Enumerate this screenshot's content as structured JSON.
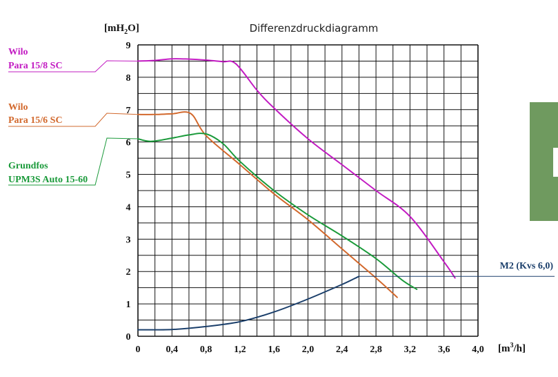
{
  "chart_data": {
    "type": "line",
    "title": "Differenzdruckdiagramm",
    "ylabel": "[mH2O]",
    "xlabel": "[m3/h]",
    "xlim": [
      0,
      4.0
    ],
    "ylim": [
      0,
      9
    ],
    "grid": true,
    "x_ticks": [
      0,
      0.4,
      0.8,
      1.2,
      1.6,
      2.0,
      2.4,
      2.8,
      3.2,
      3.6,
      4.0
    ],
    "x_tick_labels": [
      "0",
      "0,4",
      "0,8",
      "1,2",
      "1,6",
      "2,0",
      "2,4",
      "2,8",
      "3,2",
      "3,6",
      "4,0"
    ],
    "y_ticks": [
      0,
      1,
      2,
      3,
      4,
      5,
      6,
      7,
      8,
      9
    ],
    "y_tick_labels": [
      "0",
      "1",
      "2",
      "3",
      "4",
      "5",
      "6",
      "7",
      "8",
      "9"
    ],
    "series": [
      {
        "name": "Wilo Para 15/8 SC",
        "label_lines": [
          "Wilo",
          "Para 15/8 SC"
        ],
        "color": "#c21bc2",
        "x": [
          0,
          0.2,
          0.4,
          0.6,
          0.8,
          1.0,
          1.15,
          1.4,
          1.6,
          2.0,
          2.4,
          2.8,
          3.2,
          3.6,
          3.73
        ],
        "y": [
          8.5,
          8.52,
          8.57,
          8.56,
          8.53,
          8.48,
          8.42,
          7.6,
          7.05,
          6.1,
          5.3,
          4.5,
          3.7,
          2.3,
          1.8
        ]
      },
      {
        "name": "Wilo Para 15/6 SC",
        "label_lines": [
          "Wilo",
          "Para 15/6 SC"
        ],
        "color": "#d2682c",
        "x": [
          0,
          0.2,
          0.4,
          0.62,
          0.8,
          1.2,
          1.6,
          2.0,
          2.4,
          2.8,
          3.05
        ],
        "y": [
          6.85,
          6.85,
          6.87,
          6.88,
          6.2,
          5.3,
          4.4,
          3.6,
          2.7,
          1.8,
          1.2
        ]
      },
      {
        "name": "Grundfos UPM3S Auto 15-60",
        "label_lines": [
          "Grundfos",
          "UPM3S Auto 15-60"
        ],
        "color": "#1a9a3a",
        "x": [
          0,
          0.15,
          0.4,
          0.6,
          0.8,
          1.0,
          1.2,
          1.6,
          2.0,
          2.4,
          2.8,
          3.1,
          3.28
        ],
        "y": [
          6.1,
          6.02,
          6.12,
          6.22,
          6.25,
          5.95,
          5.4,
          4.5,
          3.75,
          3.1,
          2.4,
          1.75,
          1.45
        ]
      },
      {
        "name": "M2 (Kvs 6,0)",
        "label_lines": [
          "M2 (Kvs 6,0)"
        ],
        "color": "#1b3f6b",
        "x": [
          0,
          0.4,
          0.8,
          1.2,
          1.6,
          2.0,
          2.4,
          2.6
        ],
        "y": [
          0.2,
          0.21,
          0.3,
          0.45,
          0.75,
          1.15,
          1.6,
          1.85
        ]
      }
    ]
  }
}
